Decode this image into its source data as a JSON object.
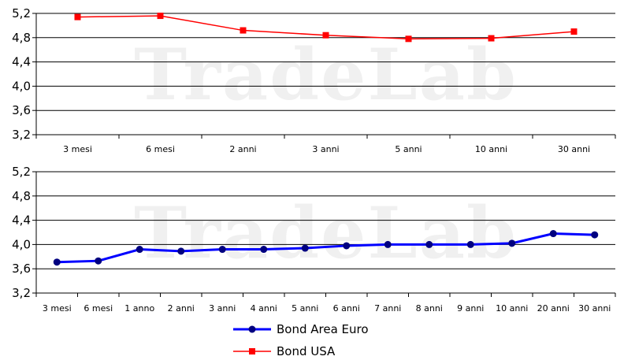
{
  "watermark": "TradeLab",
  "chart_data": [
    {
      "type": "line",
      "categories": [
        "3 mesi",
        "6 mesi",
        "2 anni",
        "3 anni",
        "5 anni",
        "10 anni",
        "30 anni"
      ],
      "series": [
        {
          "name": "Bond USA",
          "color": "#ff0000",
          "marker": "square",
          "values": [
            5.14,
            5.16,
            4.92,
            4.84,
            4.78,
            4.79,
            4.9
          ]
        }
      ],
      "ylim": [
        3.2,
        5.2
      ],
      "yticks": [
        "5,2",
        "4,8",
        "4,4",
        "4,0",
        "3,6",
        "3,2"
      ],
      "ytick_values": [
        5.2,
        4.8,
        4.4,
        4.0,
        3.6,
        3.2
      ],
      "grid": true
    },
    {
      "type": "line",
      "categories": [
        "3 mesi",
        "6 mesi",
        "1 anno",
        "2 anni",
        "3 anni",
        "4 anni",
        "5 anni",
        "6 anni",
        "7 anni",
        "8 anni",
        "9 anni",
        "10 anni",
        "20 anni",
        "30 anni"
      ],
      "series": [
        {
          "name": "Bond Area Euro",
          "color": "#0000ff",
          "marker": "circle",
          "values": [
            3.71,
            3.73,
            3.92,
            3.89,
            3.92,
            3.92,
            3.94,
            3.98,
            4.0,
            4.0,
            4.0,
            4.02,
            4.18,
            4.16
          ]
        }
      ],
      "ylim": [
        3.2,
        5.2
      ],
      "yticks": [
        "5,2",
        "4,8",
        "4,4",
        "4,0",
        "3,6",
        "3,2"
      ],
      "ytick_values": [
        5.2,
        4.8,
        4.4,
        4.0,
        3.6,
        3.2
      ],
      "grid": true
    }
  ],
  "legend": {
    "placement": "bottom-center",
    "items": [
      {
        "label": "Bond Area Euro",
        "color": "#0000ff",
        "marker": "circle"
      },
      {
        "label": "Bond USA",
        "color": "#ff0000",
        "marker": "square"
      }
    ]
  }
}
